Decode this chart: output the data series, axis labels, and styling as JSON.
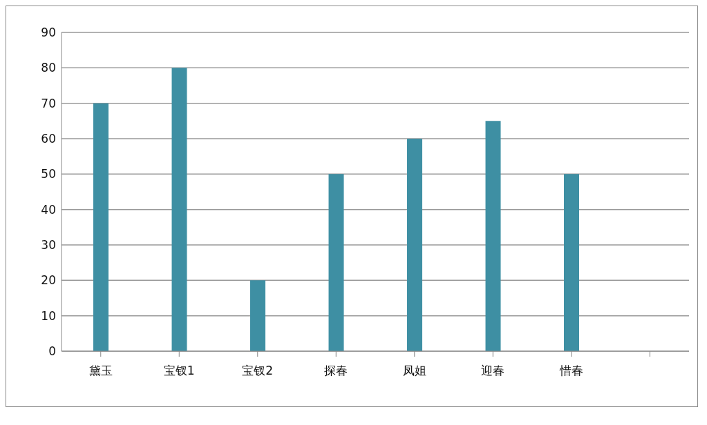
{
  "chart_data": {
    "type": "bar",
    "categories": [
      "黛玉",
      "宝钗1",
      "宝钗2",
      "探春",
      "凤姐",
      "迎春",
      "惜春",
      null
    ],
    "values": [
      70,
      80,
      20,
      50,
      60,
      65,
      50,
      null
    ],
    "color": "#3e8fa3",
    "ylim": [
      0,
      90
    ],
    "yticks": [
      0,
      10,
      20,
      30,
      40,
      50,
      60,
      70,
      80,
      90
    ],
    "grid": "y"
  }
}
